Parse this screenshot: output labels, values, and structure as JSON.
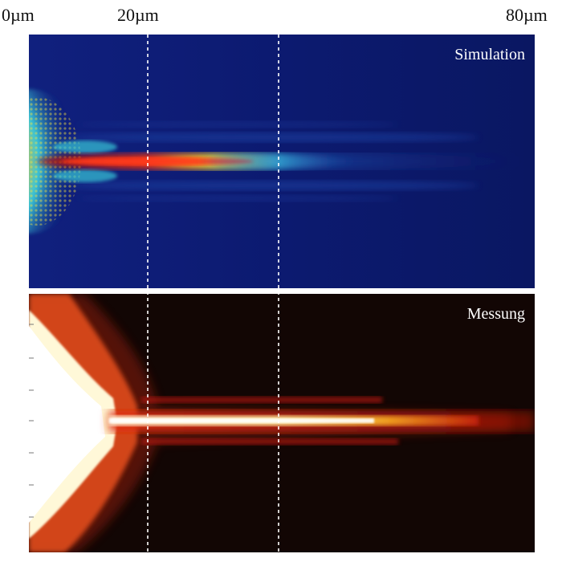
{
  "scale": {
    "start": "0µm",
    "mid": "20µm",
    "end": "80µm"
  },
  "panels": {
    "top": {
      "title": "Simulation"
    },
    "bottom": {
      "title": "Messung"
    }
  },
  "colors": {
    "simulation_background": "#0b1a6e",
    "measurement_background": "#120604",
    "guide_line": "#ffffff"
  }
}
